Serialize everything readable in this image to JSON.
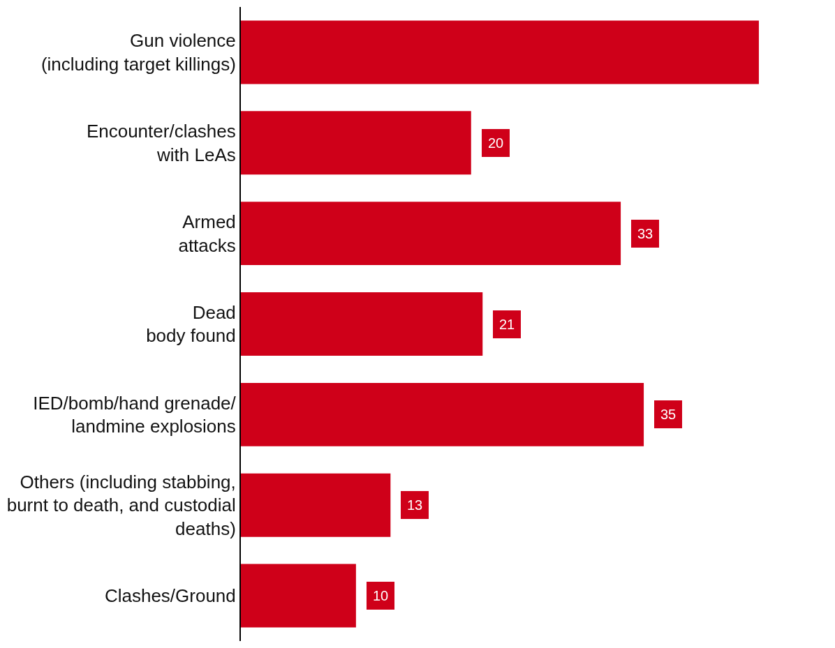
{
  "chart_data": {
    "type": "bar",
    "orientation": "horizontal",
    "categories": [
      "Gun violence\n(including target killings)",
      "Encounter/clashes\nwith LeAs",
      "Armed\nattacks",
      "Dead\nbody found",
      "IED/bomb/hand grenade/\nlandmine explosions",
      "Others (including stabbing,\nburnt to death, and custodial\ndeaths)",
      "Clashes/Ground"
    ],
    "values": [
      45,
      20,
      33,
      21,
      35,
      13,
      10
    ],
    "value_labels": [
      null,
      "20",
      "33",
      "21",
      "35",
      "13",
      "10"
    ],
    "color": "#cf0019",
    "grid": false,
    "legend": false
  }
}
